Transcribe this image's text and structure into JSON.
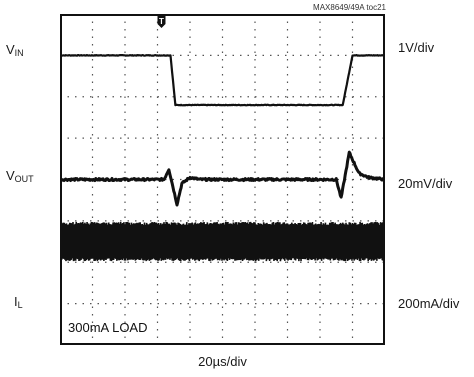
{
  "figure_code": "MAX8649/49A toc21",
  "chart_title": "",
  "chart_data": {
    "type": "line",
    "title": "",
    "x_scale": "20µs/div",
    "annotation": "300mA LOAD",
    "trigger_marker": "T",
    "grid": true,
    "xlim": [
      0,
      200
    ],
    "x_unit": "µs",
    "divisions": {
      "x": 10,
      "y": 8
    },
    "channels": [
      {
        "label_main": "V",
        "label_sub": "IN",
        "scale": "1V/div",
        "baseline_div": 7.0,
        "x": [
          0,
          60,
          68,
          71,
          170,
          174,
          180,
          200
        ],
        "y_div": [
          0,
          0,
          0,
          -1.2,
          -1.2,
          -1.2,
          0,
          0
        ]
      },
      {
        "label_main": "V",
        "label_sub": "OUT",
        "scale": "20mV/div",
        "baseline_div": 4.0,
        "x": [
          0,
          64,
          67,
          72,
          75,
          80,
          86,
          100,
          160,
          170,
          173,
          178,
          184,
          190,
          200
        ],
        "y_div": [
          0,
          0,
          0.25,
          -0.6,
          -0.1,
          0.05,
          0,
          0,
          0,
          0,
          -0.45,
          0.65,
          0.15,
          0.05,
          0
        ]
      },
      {
        "label_main": "I",
        "label_sub": "L",
        "scale": "200mA/div",
        "baseline_div": 2.5,
        "ripple_band_div": 0.95,
        "x": [
          0,
          70,
          180,
          200
        ],
        "y_div": [
          0,
          0,
          0,
          0
        ]
      }
    ]
  }
}
